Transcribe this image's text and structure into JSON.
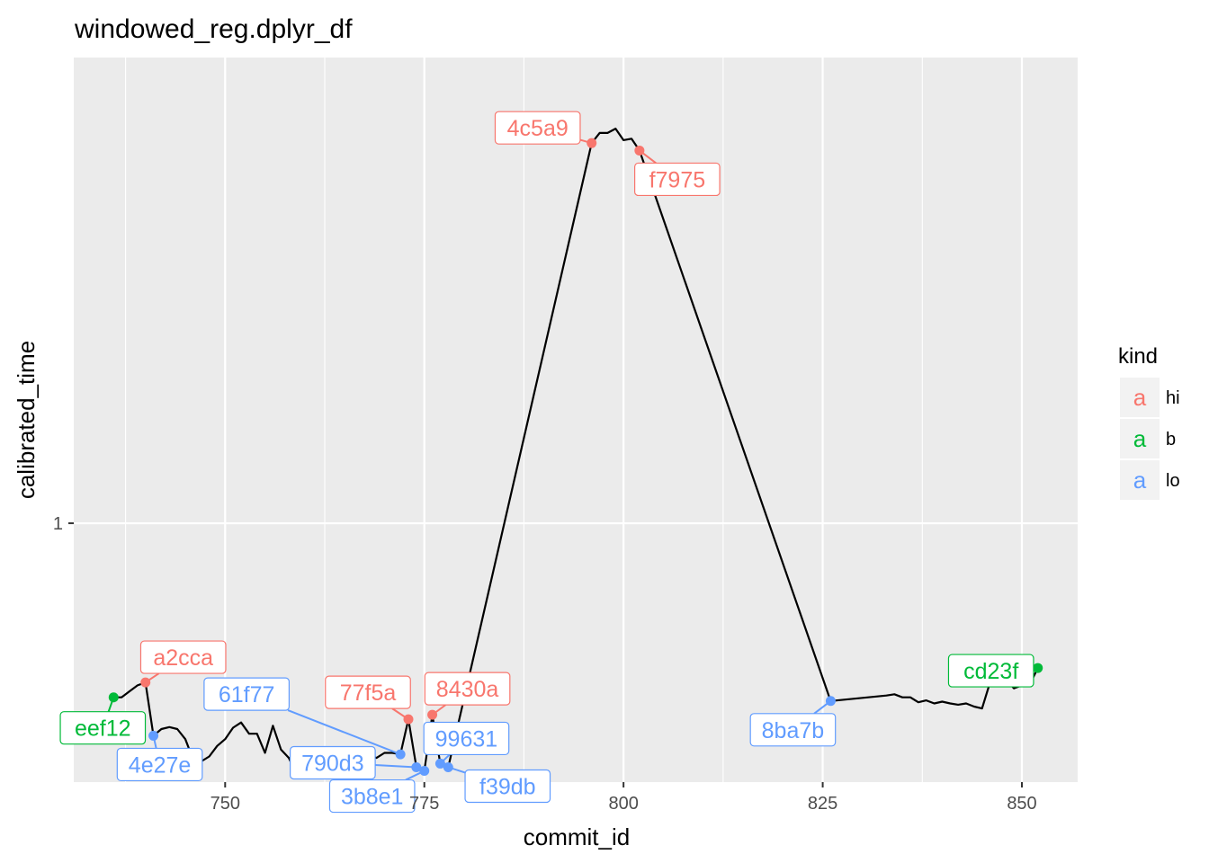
{
  "chart_data": {
    "type": "line",
    "title": "windowed_reg.dplyr_df",
    "xlabel": "commit_id",
    "ylabel": "calibrated_time",
    "xlim": [
      731,
      857
    ],
    "ylim": [
      0.515,
      3.3
    ],
    "y_scale": "log",
    "x_ticks": [
      750,
      775,
      800,
      825,
      850
    ],
    "x_tick_labels": [
      "750",
      "775",
      "800",
      "825",
      "850"
    ],
    "y_ticks": [
      1
    ],
    "y_tick_labels": [
      "1"
    ],
    "grid": true,
    "legend": {
      "title": "kind",
      "position": "right",
      "entries": [
        {
          "label": "hi",
          "key": "a",
          "color": "#F8766D"
        },
        {
          "label": "b",
          "key": "a",
          "color": "#00BA38"
        },
        {
          "label": "lo",
          "key": "a",
          "color": "#619CFF"
        }
      ]
    },
    "colors": {
      "hi": "#F8766D",
      "b": "#00BA38",
      "lo": "#619CFF",
      "line": "#000000",
      "panel": "#EBEBEB",
      "grid": "#FFFFFF"
    },
    "line": {
      "x": [
        736,
        737,
        738,
        739,
        740,
        741,
        742,
        743,
        744,
        745,
        746,
        747,
        748,
        749,
        750,
        751,
        752,
        753,
        754,
        755,
        756,
        757,
        758,
        759,
        760,
        761,
        762,
        763,
        764,
        765,
        766,
        767,
        768,
        769,
        770,
        771,
        772,
        773,
        774,
        775,
        776,
        777,
        778,
        796,
        797,
        798,
        799,
        800,
        801,
        802,
        826,
        833,
        834,
        835,
        836,
        837,
        838,
        839,
        840,
        841,
        842,
        843,
        844,
        845,
        846,
        847,
        848,
        849,
        850,
        851,
        852
      ],
      "y": [
        0.64,
        0.64,
        0.65,
        0.66,
        0.665,
        0.58,
        0.59,
        0.593,
        0.59,
        0.575,
        0.545,
        0.543,
        0.55,
        0.565,
        0.575,
        0.592,
        0.6,
        0.583,
        0.583,
        0.555,
        0.595,
        0.56,
        0.548,
        0.525,
        0.532,
        0.525,
        0.537,
        0.545,
        0.56,
        0.558,
        0.555,
        0.552,
        0.552,
        0.548,
        0.555,
        0.555,
        0.553,
        0.605,
        0.535,
        0.53,
        0.612,
        0.54,
        0.535,
        2.65,
        2.72,
        2.72,
        2.75,
        2.67,
        2.68,
        2.6,
        0.634,
        0.643,
        0.645,
        0.64,
        0.64,
        0.632,
        0.635,
        0.63,
        0.633,
        0.63,
        0.628,
        0.63,
        0.625,
        0.622,
        0.665,
        0.668,
        0.67,
        0.655,
        0.66,
        0.662,
        0.69
      ]
    },
    "points": [
      {
        "label": "4c5a9",
        "kind": "hi",
        "x": 796,
        "y": 2.65
      },
      {
        "label": "f7975",
        "kind": "hi",
        "x": 802,
        "y": 2.6
      },
      {
        "label": "a2cca",
        "kind": "hi",
        "x": 740,
        "y": 0.665
      },
      {
        "label": "77f5a",
        "kind": "hi",
        "x": 773,
        "y": 0.605
      },
      {
        "label": "8430a",
        "kind": "hi",
        "x": 776,
        "y": 0.612
      },
      {
        "label": "eef12",
        "kind": "b",
        "x": 736,
        "y": 0.64
      },
      {
        "label": "cd23f",
        "kind": "b",
        "x": 852,
        "y": 0.69
      },
      {
        "label": "4e27e",
        "kind": "lo",
        "x": 741,
        "y": 0.58
      },
      {
        "label": "61f77",
        "kind": "lo",
        "x": 772,
        "y": 0.553
      },
      {
        "label": "790d3",
        "kind": "lo",
        "x": 774,
        "y": 0.535
      },
      {
        "label": "3b8e1",
        "kind": "lo",
        "x": 775,
        "y": 0.53
      },
      {
        "label": "99631",
        "kind": "lo",
        "x": 777,
        "y": 0.54
      },
      {
        "label": "f39db",
        "kind": "lo",
        "x": 778,
        "y": 0.535
      },
      {
        "label": "8ba7b",
        "kind": "lo",
        "x": 826,
        "y": 0.634
      }
    ]
  }
}
